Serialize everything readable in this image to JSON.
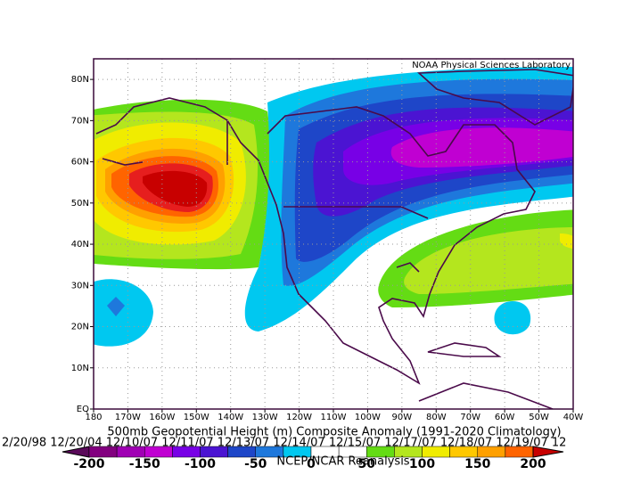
{
  "title": "500mb Geopotential Height (m) Composite Anomaly (1991-2020 Climatology)",
  "dates": "2/20/98 12/20/04 12/10/07 12/11/07 12/13/07 12/14/07 12/15/07 12/17/07 12/18/07 12/19/07 12",
  "credit": "NOAA Physical Sciences Laboratory",
  "source": "NCEP/NCAR Reanalysis",
  "map": {
    "latlim": [
      0,
      85
    ],
    "lonlim": [
      180,
      40
    ],
    "lat_ticks": [
      {
        "value": 0,
        "label": "EQ"
      },
      {
        "value": 10,
        "label": "10N"
      },
      {
        "value": 20,
        "label": "20N"
      },
      {
        "value": 30,
        "label": "30N"
      },
      {
        "value": 40,
        "label": "40N"
      },
      {
        "value": 50,
        "label": "50N"
      },
      {
        "value": 60,
        "label": "60N"
      },
      {
        "value": 70,
        "label": "70N"
      },
      {
        "value": 80,
        "label": "80N"
      }
    ],
    "lon_ticks": [
      {
        "value": 180,
        "label": "180"
      },
      {
        "value": 170,
        "label": "170W"
      },
      {
        "value": 160,
        "label": "160W"
      },
      {
        "value": 150,
        "label": "150W"
      },
      {
        "value": 140,
        "label": "140W"
      },
      {
        "value": 130,
        "label": "130W"
      },
      {
        "value": 120,
        "label": "120W"
      },
      {
        "value": 110,
        "label": "110W"
      },
      {
        "value": 100,
        "label": "100W"
      },
      {
        "value": 90,
        "label": "90W"
      },
      {
        "value": 80,
        "label": "80W"
      },
      {
        "value": 70,
        "label": "70W"
      },
      {
        "value": 60,
        "label": "60W"
      },
      {
        "value": 50,
        "label": "50W"
      },
      {
        "value": 40,
        "label": "40W"
      }
    ]
  },
  "colorbar": {
    "levels": [
      -200,
      -175,
      -150,
      -125,
      -100,
      -75,
      -50,
      -25,
      0,
      25,
      50,
      75,
      100,
      125,
      150,
      175,
      200
    ],
    "colors": [
      "#5a0a5a",
      "#82007f",
      "#a000b4",
      "#c000d2",
      "#7800e6",
      "#4b14d2",
      "#1e46c8",
      "#1e78dc",
      "#00c8f0",
      "#ffffff",
      "#ffffff",
      "#64dc14",
      "#b4e61e",
      "#f0ec00",
      "#ffc800",
      "#ffa000",
      "#ff6400",
      "#e61e1e",
      "#c80000"
    ],
    "ticks": [
      -200,
      -150,
      -100,
      -50,
      0,
      50,
      100,
      150,
      200
    ]
  }
}
